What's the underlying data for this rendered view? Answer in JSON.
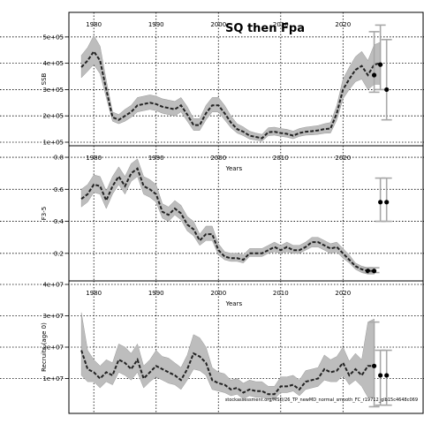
{
  "title": "SQ then Fpa",
  "source_note": "stockassessment.org/MSD/26_TP_newMD_normal_smooth_FC_r19712_glb15c4648c069",
  "chart_data": [
    {
      "type": "line",
      "ylabel": "SSB",
      "xlabel": "Years",
      "xlim": [
        1976,
        2033
      ],
      "ylim": [
        100000,
        580000
      ],
      "xticks": [
        1980,
        1990,
        2000,
        2010,
        2020
      ],
      "yticks": [
        100000,
        200000,
        300000,
        400000,
        500000
      ],
      "ytick_labels": [
        "1e+05",
        "2e+05",
        "3e+05",
        "4e+05",
        "5e+05"
      ],
      "series": [
        {
          "x": [
            1978,
            1979,
            1980,
            1981,
            1982,
            1983,
            1984,
            1985,
            1986,
            1987,
            1988,
            1989,
            1990,
            1991,
            1992,
            1993,
            1994,
            1995,
            1996,
            1997,
            1998,
            1999,
            2000,
            2001,
            2002,
            2003,
            2004,
            2005,
            2006,
            2007,
            2008,
            2009,
            2010,
            2011,
            2012,
            2013,
            2014,
            2015,
            2016,
            2017,
            2018,
            2019,
            2020,
            2021,
            2022,
            2023,
            2024,
            2025,
            2026
          ],
          "y": [
            385000,
            410000,
            445000,
            410000,
            300000,
            195000,
            185000,
            200000,
            215000,
            240000,
            245000,
            250000,
            245000,
            235000,
            230000,
            225000,
            240000,
            205000,
            165000,
            165000,
            210000,
            240000,
            240000,
            210000,
            175000,
            150000,
            140000,
            125000,
            120000,
            115000,
            138000,
            140000,
            135000,
            132000,
            125000,
            135000,
            140000,
            142000,
            145000,
            150000,
            152000,
            210000,
            300000,
            340000,
            375000,
            390000,
            355000,
            395000,
            400000
          ],
          "lower": [
            345000,
            370000,
            395000,
            360000,
            270000,
            180000,
            170000,
            180000,
            195000,
            215000,
            220000,
            225000,
            220000,
            210000,
            205000,
            200000,
            215000,
            180000,
            145000,
            145000,
            185000,
            215000,
            215000,
            185000,
            155000,
            135000,
            125000,
            112000,
            108000,
            104000,
            125000,
            127000,
            122000,
            119000,
            113000,
            122000,
            127000,
            128000,
            130000,
            134000,
            135000,
            185000,
            265000,
            300000,
            330000,
            340000,
            300000,
            320000,
            320000
          ],
          "upper": [
            430000,
            460000,
            505000,
            465000,
            335000,
            215000,
            205000,
            225000,
            240000,
            270000,
            275000,
            280000,
            275000,
            265000,
            260000,
            255000,
            270000,
            235000,
            190000,
            190000,
            240000,
            270000,
            270000,
            240000,
            200000,
            170000,
            158000,
            142000,
            135000,
            130000,
            155000,
            157000,
            152000,
            149000,
            142000,
            152000,
            157000,
            160000,
            163000,
            170000,
            175000,
            240000,
            340000,
            385000,
            425000,
            445000,
            410000,
            470000,
            480000
          ]
        }
      ],
      "intervals": [
        {
          "x": 2025,
          "lower": 290000,
          "upper": 520000,
          "point": 355000
        },
        {
          "x": 2026,
          "lower": 300000,
          "upper": 545000,
          "point": 395000
        },
        {
          "x": 2027,
          "lower": 185000,
          "upper": 490000,
          "point": 300000
        }
      ],
      "grid": true
    },
    {
      "type": "line",
      "ylabel": "F3-5",
      "xlabel": "Years",
      "xlim": [
        1976,
        2033
      ],
      "ylim": [
        0.05,
        0.85
      ],
      "xticks": [
        1980,
        1990,
        2000,
        2010,
        2020
      ],
      "yticks": [
        0.2,
        0.4,
        0.6,
        0.8
      ],
      "ytick_labels": [
        "0.2",
        "0.4",
        "0.6",
        "0.8"
      ],
      "series": [
        {
          "x": [
            1978,
            1979,
            1980,
            1981,
            1982,
            1983,
            1984,
            1985,
            1986,
            1987,
            1988,
            1989,
            1990,
            1991,
            1992,
            1993,
            1994,
            1995,
            1996,
            1997,
            1998,
            1999,
            2000,
            2001,
            2002,
            2003,
            2004,
            2005,
            2006,
            2007,
            2008,
            2009,
            2010,
            2011,
            2012,
            2013,
            2014,
            2015,
            2016,
            2017,
            2018,
            2019,
            2020,
            2021,
            2022,
            2023,
            2024,
            2025
          ],
          "y": [
            0.54,
            0.57,
            0.63,
            0.62,
            0.53,
            0.62,
            0.68,
            0.62,
            0.7,
            0.73,
            0.62,
            0.6,
            0.57,
            0.46,
            0.44,
            0.48,
            0.45,
            0.38,
            0.35,
            0.28,
            0.32,
            0.32,
            0.22,
            0.18,
            0.17,
            0.17,
            0.16,
            0.2,
            0.2,
            0.2,
            0.22,
            0.24,
            0.22,
            0.24,
            0.22,
            0.22,
            0.24,
            0.27,
            0.27,
            0.25,
            0.23,
            0.24,
            0.2,
            0.16,
            0.12,
            0.1,
            0.09,
            0.09
          ],
          "lower": [
            0.49,
            0.52,
            0.58,
            0.57,
            0.48,
            0.57,
            0.63,
            0.57,
            0.65,
            0.68,
            0.57,
            0.55,
            0.52,
            0.42,
            0.4,
            0.44,
            0.41,
            0.34,
            0.31,
            0.25,
            0.28,
            0.28,
            0.19,
            0.16,
            0.15,
            0.15,
            0.14,
            0.18,
            0.18,
            0.18,
            0.2,
            0.21,
            0.2,
            0.21,
            0.2,
            0.2,
            0.22,
            0.24,
            0.24,
            0.22,
            0.2,
            0.21,
            0.17,
            0.14,
            0.1,
            0.08,
            0.07,
            0.07
          ],
          "upper": [
            0.6,
            0.63,
            0.69,
            0.68,
            0.59,
            0.68,
            0.74,
            0.68,
            0.76,
            0.79,
            0.68,
            0.66,
            0.63,
            0.51,
            0.49,
            0.53,
            0.5,
            0.43,
            0.4,
            0.32,
            0.37,
            0.37,
            0.26,
            0.21,
            0.2,
            0.2,
            0.19,
            0.23,
            0.23,
            0.23,
            0.25,
            0.27,
            0.25,
            0.27,
            0.25,
            0.25,
            0.27,
            0.3,
            0.3,
            0.28,
            0.26,
            0.27,
            0.23,
            0.19,
            0.14,
            0.12,
            0.11,
            0.11
          ]
        }
      ],
      "intervals": [
        {
          "x": 2024,
          "lower": 0.08,
          "upper": 0.11,
          "point": 0.09
        },
        {
          "x": 2025,
          "lower": 0.08,
          "upper": 0.11,
          "point": 0.09
        },
        {
          "x": 2026,
          "lower": 0.4,
          "upper": 0.67,
          "point": 0.52
        },
        {
          "x": 2027,
          "lower": 0.4,
          "upper": 0.67,
          "point": 0.52
        }
      ],
      "grid": true
    },
    {
      "type": "line",
      "ylabel": "Recruits (age 0)",
      "xlabel": "Years",
      "xlim": [
        1976,
        2033
      ],
      "ylim": [
        0,
        40000000
      ],
      "xticks": [
        1980,
        1990,
        2000,
        2010,
        2020
      ],
      "yticks": [
        10000000,
        20000000,
        30000000,
        40000000
      ],
      "ytick_labels": [
        "1e+07",
        "2e+07",
        "3e+07",
        "4e+07"
      ],
      "series": [
        {
          "x": [
            1978,
            1979,
            1980,
            1981,
            1982,
            1983,
            1984,
            1985,
            1986,
            1987,
            1988,
            1989,
            1990,
            1991,
            1992,
            1993,
            1994,
            1995,
            1996,
            1997,
            1998,
            1999,
            2000,
            2001,
            2002,
            2003,
            2004,
            2005,
            2006,
            2007,
            2008,
            2009,
            2010,
            2011,
            2012,
            2013,
            2014,
            2015,
            2016,
            2017,
            2018,
            2019,
            2020,
            2021,
            2022,
            2023,
            2024,
            2025
          ],
          "y": [
            19000000,
            13000000,
            12000000,
            10000000,
            12000000,
            11000000,
            16000000,
            15000000,
            13000000,
            16000000,
            10000000,
            12000000,
            14000000,
            13000000,
            12000000,
            11000000,
            9500000,
            13000000,
            18000000,
            17000000,
            15000000,
            9500000,
            8500000,
            8000000,
            6500000,
            7000000,
            5500000,
            6500000,
            6000000,
            6000000,
            5000000,
            5000000,
            7500000,
            7500000,
            8000000,
            6500000,
            9000000,
            9500000,
            10000000,
            13000000,
            12000000,
            12500000,
            15000000,
            11000000,
            13000000,
            11000000,
            14000000,
            14000000
          ],
          "lower": [
            11000000,
            9000000,
            9000000,
            7000000,
            9000000,
            8000000,
            12000000,
            11000000,
            9500000,
            12000000,
            7000000,
            9000000,
            10500000,
            9500000,
            8500000,
            8000000,
            6500000,
            9500000,
            13000000,
            12500000,
            11000000,
            6500000,
            6000000,
            5500000,
            4500000,
            5000000,
            3500000,
            4500000,
            4000000,
            4000000,
            3500000,
            3500000,
            5500000,
            5500000,
            6000000,
            4500000,
            6500000,
            7000000,
            7500000,
            9500000,
            9000000,
            9000000,
            11000000,
            8000000,
            9500000,
            7500000,
            4000000,
            4000000
          ],
          "upper": [
            31000000,
            19000000,
            16000000,
            14000000,
            16000000,
            15000000,
            21000000,
            20000000,
            18000000,
            21000000,
            14000000,
            16000000,
            19000000,
            17000000,
            16500000,
            15000000,
            13500000,
            17500000,
            24000000,
            23000000,
            20000000,
            13500000,
            12000000,
            11500000,
            9500000,
            10000000,
            8500000,
            9500000,
            9000000,
            9000000,
            7500000,
            7500000,
            10500000,
            10500000,
            11000000,
            9500000,
            12500000,
            13000000,
            13500000,
            17500000,
            16000000,
            17000000,
            20000000,
            15500000,
            18000000,
            16000000,
            28000000,
            29000000
          ]
        }
      ],
      "intervals": [
        {
          "x": 2025,
          "lower": 1000000,
          "upper": 28000000,
          "point": 14000000
        },
        {
          "x": 2026,
          "lower": 1500000,
          "upper": 19000000,
          "point": 11000000
        },
        {
          "x": 2027,
          "lower": 1500000,
          "upper": 19000000,
          "point": 11000000
        }
      ],
      "grid": true
    }
  ],
  "colors": {
    "band": "#bdbdbd",
    "line": "#222222",
    "interval": "#a8a8a8",
    "point": "#000000"
  }
}
